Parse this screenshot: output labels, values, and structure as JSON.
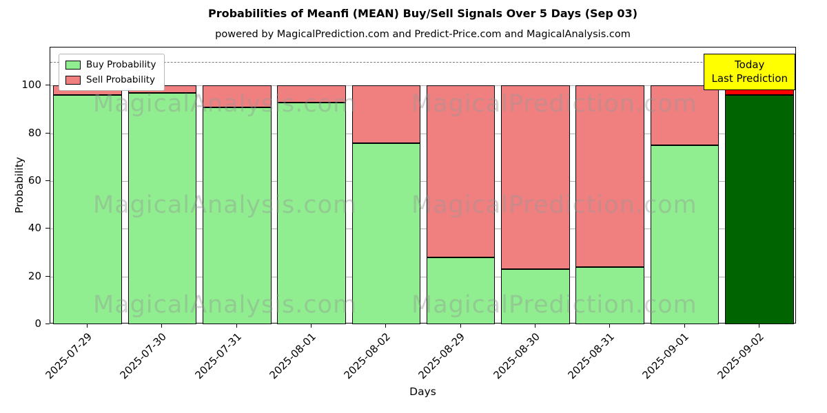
{
  "title": "Probabilities of Meanfi (MEAN) Buy/Sell Signals Over 5 Days (Sep 03)",
  "subtitle": "powered by MagicalPrediction.com and Predict-Price.com and MagicalAnalysis.com",
  "annotation": {
    "lines": [
      "Today",
      "Last Prediction"
    ],
    "bg_color": "#ffff00"
  },
  "watermarks": [
    "MagicalAnalysis.com",
    "MagicalPrediction.com"
  ],
  "chart_data": {
    "type": "bar",
    "stacked": true,
    "title": "Probabilities of Meanfi (MEAN) Buy/Sell Signals Over 5 Days (Sep 03)",
    "subtitle": "powered by MagicalPrediction.com and Predict-Price.com and MagicalAnalysis.com",
    "xlabel": "Days",
    "ylabel": "Probability",
    "categories": [
      "2025-07-29",
      "2025-07-30",
      "2025-07-31",
      "2025-08-01",
      "2025-08-02",
      "2025-08-29",
      "2025-08-30",
      "2025-08-31",
      "2025-09-01",
      "2025-09-02"
    ],
    "series": [
      {
        "name": "Buy Probability",
        "values": [
          96,
          97,
          91,
          93,
          76,
          28,
          23,
          24,
          75,
          96
        ],
        "color": "#90ee90",
        "last_bar_color": "#006400"
      },
      {
        "name": "Sell Probability",
        "values": [
          4,
          3,
          9,
          7,
          24,
          72,
          77,
          76,
          25,
          4
        ],
        "color": "#f08080",
        "last_bar_color": "#ff0000"
      }
    ],
    "ylim": [
      0,
      116
    ],
    "yticks": [
      0,
      20,
      40,
      60,
      80,
      100
    ],
    "dashed_line_y": 110,
    "grid": true,
    "legend_position": "upper left",
    "bar_edge_color": "#000000",
    "background_color": "#ffffff"
  }
}
